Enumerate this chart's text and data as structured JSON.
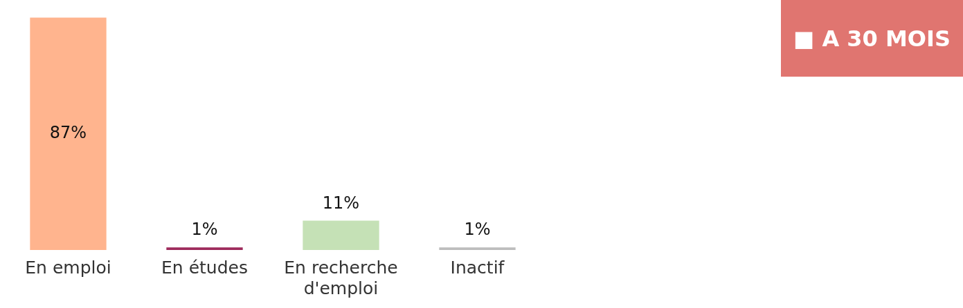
{
  "chart_data": {
    "type": "bar",
    "title": "■ A 30 MOIS",
    "categories": [
      "En emploi",
      "En études",
      "En recherche d'emploi",
      "Inactif"
    ],
    "values": [
      87,
      1,
      11,
      1
    ],
    "colors": [
      "#ffb48e",
      "#9e2b5c",
      "#c5e1b6",
      "#bdbdbd"
    ],
    "value_labels": [
      "87%",
      "1%",
      "11%",
      "1%"
    ]
  }
}
